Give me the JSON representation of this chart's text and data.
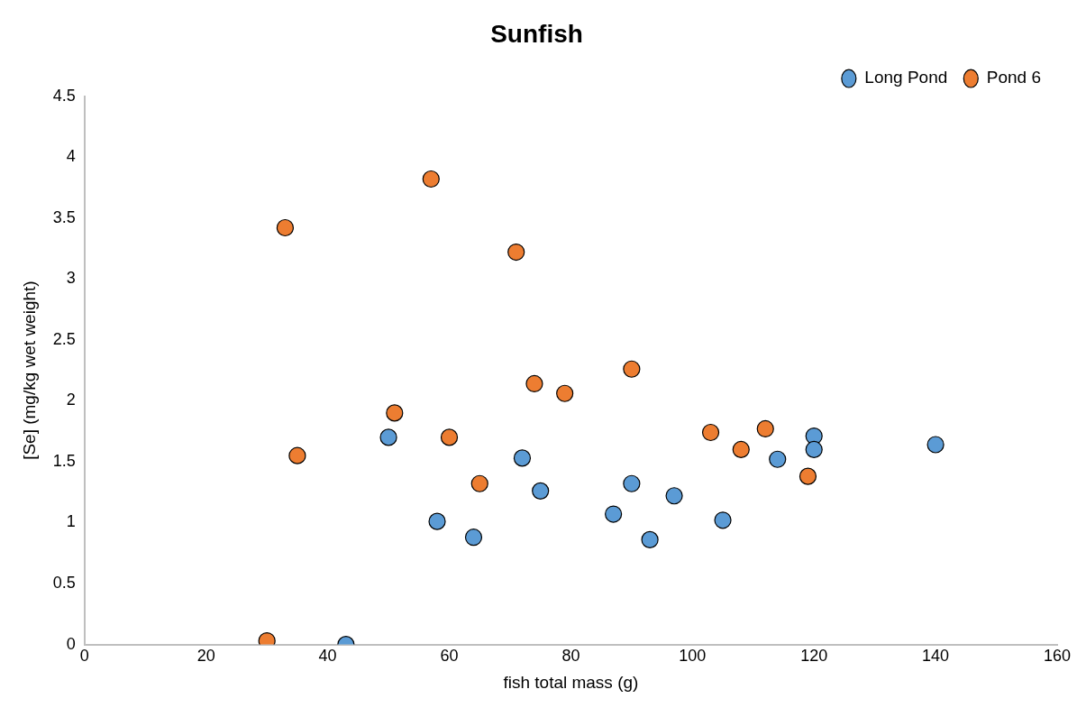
{
  "chart_data": {
    "type": "scatter",
    "title": "Sunfish",
    "xlabel": "fish total mass (g)",
    "ylabel": "[Se] (mg/kg wet weight)",
    "xlim": [
      0,
      160
    ],
    "xticks": [
      0,
      20,
      40,
      60,
      80,
      100,
      120,
      140,
      160
    ],
    "ylim": [
      0,
      4.5
    ],
    "yticks": [
      0,
      0.5,
      1,
      1.5,
      2,
      2.5,
      3,
      3.5,
      4,
      4.5
    ],
    "grid": false,
    "legend": "top right",
    "marker": "circle",
    "series": [
      {
        "name": "Long Pond",
        "color": "#5b9bd5",
        "x": [
          43,
          50,
          58,
          64,
          72,
          75,
          87,
          90,
          93,
          97,
          105,
          114,
          120,
          120,
          140
        ],
        "values": [
          0,
          1.7,
          1.01,
          0.88,
          1.53,
          1.26,
          1.07,
          1.32,
          0.86,
          1.22,
          1.02,
          1.52,
          1.71,
          1.6,
          1.64
        ]
      },
      {
        "name": "Pond 6",
        "color": "#ed7d31",
        "x": [
          30,
          33,
          35,
          51,
          57,
          60,
          65,
          71,
          74,
          79,
          90,
          103,
          108,
          112,
          119
        ],
        "values": [
          0.03,
          3.42,
          1.55,
          1.9,
          3.82,
          1.7,
          1.32,
          3.22,
          2.14,
          2.06,
          2.26,
          1.74,
          1.6,
          1.77,
          1.38
        ]
      }
    ]
  }
}
